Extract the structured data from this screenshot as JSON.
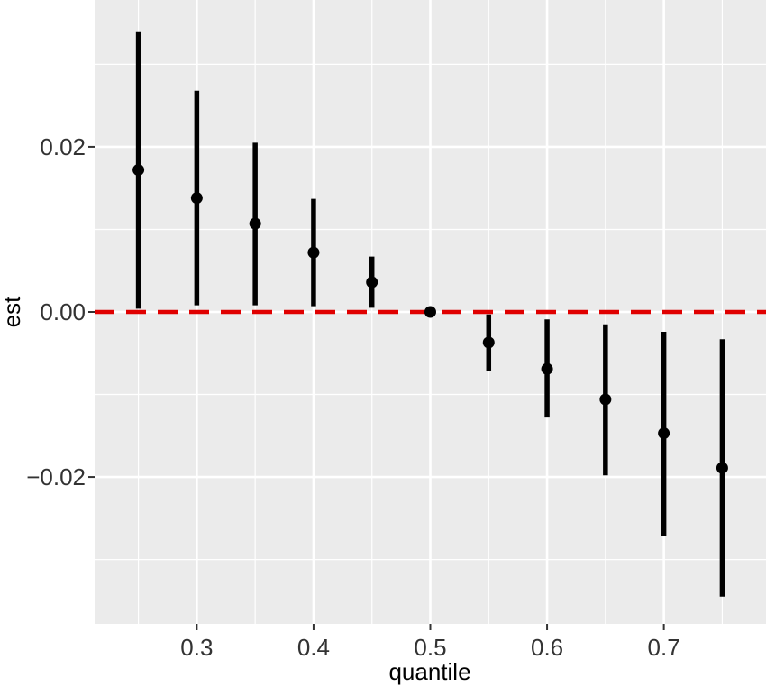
{
  "chart_data": {
    "type": "scatter",
    "title": "",
    "xlabel": "quantile",
    "ylabel": "est",
    "xlim": [
      0.2125,
      0.7875
    ],
    "ylim": [
      -0.0378,
      0.0378
    ],
    "x_ticks": [
      0.3,
      0.4,
      0.5,
      0.6,
      0.7
    ],
    "x_tick_labels": [
      "0.3",
      "0.4",
      "0.5",
      "0.6",
      "0.7"
    ],
    "y_ticks": [
      -0.02,
      0.0,
      0.02
    ],
    "y_tick_labels": [
      "−0.02",
      "0.00",
      "0.02"
    ],
    "grid": true,
    "background": "#EBEBEB",
    "grid_color": "#FFFFFF",
    "reference_line": {
      "y": 0.0,
      "style": "dashed",
      "color": "#E00000"
    },
    "series": [
      {
        "color": "#000000",
        "points": [
          {
            "x": 0.25,
            "y": 0.0172,
            "lower": 0.0004,
            "upper": 0.034
          },
          {
            "x": 0.3,
            "y": 0.0138,
            "lower": 0.0008,
            "upper": 0.0268
          },
          {
            "x": 0.35,
            "y": 0.0107,
            "lower": 0.0008,
            "upper": 0.0205
          },
          {
            "x": 0.4,
            "y": 0.0072,
            "lower": 0.0007,
            "upper": 0.0137
          },
          {
            "x": 0.45,
            "y": 0.0036,
            "lower": 0.0005,
            "upper": 0.0067
          },
          {
            "x": 0.5,
            "y": 0.0,
            "lower": 0.0,
            "upper": 0.0
          },
          {
            "x": 0.55,
            "y": -0.0037,
            "lower": -0.0072,
            "upper": -0.0003
          },
          {
            "x": 0.6,
            "y": -0.0069,
            "lower": -0.0128,
            "upper": -0.0009
          },
          {
            "x": 0.65,
            "y": -0.0106,
            "lower": -0.0198,
            "upper": -0.0015
          },
          {
            "x": 0.7,
            "y": -0.0147,
            "lower": -0.0271,
            "upper": -0.0024
          },
          {
            "x": 0.75,
            "y": -0.0189,
            "lower": -0.0345,
            "upper": -0.0033
          }
        ]
      }
    ]
  }
}
